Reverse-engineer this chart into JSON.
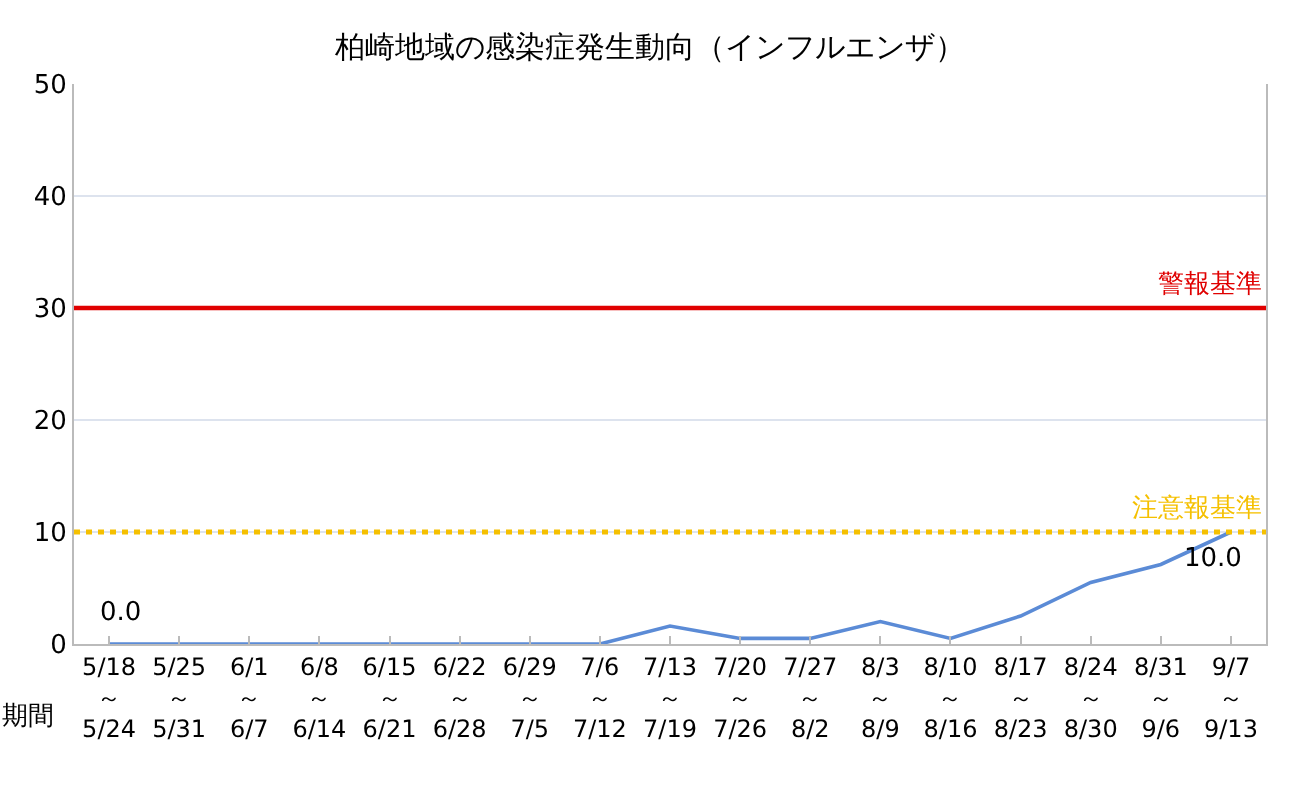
{
  "chart_data": {
    "type": "line",
    "title": "柏崎地域の感染症発生動向（インフルエンザ）",
    "xlabel": "期間",
    "categories": [
      "5/18\n～\n5/24",
      "5/25\n～\n5/31",
      "6/1\n～\n6/7",
      "6/8\n～\n6/14",
      "6/15\n～\n6/21",
      "6/22\n～\n6/28",
      "6/29\n～\n7/5",
      "7/6\n～\n7/12",
      "7/13\n～\n7/19",
      "7/20\n～\n7/26",
      "7/27\n～\n8/2",
      "8/3\n～\n8/9",
      "8/10\n～\n8/16",
      "8/17\n～\n8/23",
      "8/24\n～\n8/30",
      "8/31\n～\n9/6",
      "9/7\n～\n9/13"
    ],
    "series": [
      {
        "color": "#5b8bd6",
        "values": [
          0,
          0,
          0,
          0,
          0,
          0,
          0,
          0,
          1.6,
          0.5,
          0.5,
          2.0,
          0.5,
          2.5,
          5.5,
          7.1,
          10.0
        ],
        "value_labels": [
          "0.0",
          null,
          null,
          null,
          null,
          null,
          null,
          null,
          null,
          null,
          null,
          null,
          null,
          null,
          null,
          null,
          "10.0"
        ]
      }
    ],
    "ylim": [
      0,
      50
    ],
    "yticks": [
      0,
      10,
      20,
      30,
      40,
      50
    ],
    "grid": "y",
    "marker": "none",
    "line_style": "solid",
    "ref_lines": [
      {
        "axis": "y",
        "value": 30,
        "label": "警報基準",
        "color": "#e00000",
        "line_style": "solid"
      },
      {
        "axis": "y",
        "value": 10,
        "label": "注意報基準",
        "color": "#f5c000",
        "line_style": "dotted"
      }
    ]
  }
}
